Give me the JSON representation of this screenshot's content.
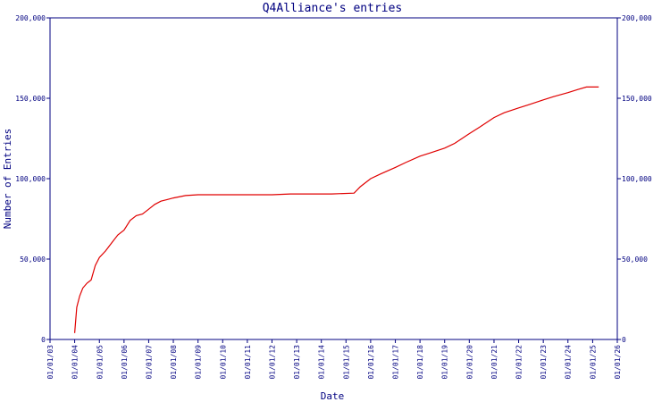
{
  "chart_data": {
    "type": "line",
    "title": "Q4Alliance's entries",
    "xlabel": "Date",
    "ylabel": "Number of Entries",
    "x_tick_labels": [
      "01/01/03",
      "01/01/04",
      "01/01/05",
      "01/01/06",
      "01/01/07",
      "01/01/08",
      "01/01/09",
      "01/01/10",
      "01/01/11",
      "01/01/12",
      "01/01/13",
      "01/01/14",
      "01/01/15",
      "01/01/16",
      "01/01/17",
      "01/01/18",
      "01/01/19",
      "01/01/20",
      "01/01/21",
      "01/01/22",
      "01/01/23",
      "01/01/24",
      "01/01/25",
      "01/01/26"
    ],
    "y_ticks": [
      0,
      50000,
      100000,
      150000,
      200000
    ],
    "y_tick_labels": [
      "0",
      "50,000",
      "100,000",
      "150,000",
      "200,000"
    ],
    "xlim": [
      "2003-01-01",
      "2026-01-01"
    ],
    "ylim": [
      0,
      200000
    ],
    "grid": false,
    "legend": "none",
    "dual_y_axis": true,
    "series": [
      {
        "color": "#e00000",
        "points": [
          {
            "x": "2004-01-01",
            "y": 4000
          },
          {
            "x": "2004-02-01",
            "y": 20000
          },
          {
            "x": "2004-03-15",
            "y": 27000
          },
          {
            "x": "2004-05-01",
            "y": 32000
          },
          {
            "x": "2004-07-01",
            "y": 35000
          },
          {
            "x": "2004-09-01",
            "y": 37000
          },
          {
            "x": "2004-11-01",
            "y": 46000
          },
          {
            "x": "2005-01-01",
            "y": 51000
          },
          {
            "x": "2005-04-01",
            "y": 55000
          },
          {
            "x": "2005-07-01",
            "y": 60000
          },
          {
            "x": "2005-10-01",
            "y": 65000
          },
          {
            "x": "2006-01-01",
            "y": 68000
          },
          {
            "x": "2006-04-01",
            "y": 74000
          },
          {
            "x": "2006-07-01",
            "y": 77000
          },
          {
            "x": "2006-10-01",
            "y": 78000
          },
          {
            "x": "2007-01-01",
            "y": 81000
          },
          {
            "x": "2007-04-01",
            "y": 84000
          },
          {
            "x": "2007-07-01",
            "y": 86000
          },
          {
            "x": "2007-10-01",
            "y": 87000
          },
          {
            "x": "2008-01-01",
            "y": 88000
          },
          {
            "x": "2008-07-01",
            "y": 89500
          },
          {
            "x": "2009-01-01",
            "y": 90000
          },
          {
            "x": "2010-01-01",
            "y": 90000
          },
          {
            "x": "2011-01-01",
            "y": 90000
          },
          {
            "x": "2012-01-01",
            "y": 90000
          },
          {
            "x": "2012-10-01",
            "y": 90500
          },
          {
            "x": "2013-06-01",
            "y": 90500
          },
          {
            "x": "2014-06-01",
            "y": 90500
          },
          {
            "x": "2015-05-01",
            "y": 91000
          },
          {
            "x": "2015-08-01",
            "y": 95000
          },
          {
            "x": "2016-01-01",
            "y": 100000
          },
          {
            "x": "2016-06-01",
            "y": 103000
          },
          {
            "x": "2017-01-01",
            "y": 107000
          },
          {
            "x": "2017-06-01",
            "y": 110000
          },
          {
            "x": "2018-01-01",
            "y": 114000
          },
          {
            "x": "2018-06-01",
            "y": 116000
          },
          {
            "x": "2019-01-01",
            "y": 119000
          },
          {
            "x": "2019-06-01",
            "y": 122000
          },
          {
            "x": "2020-01-01",
            "y": 128000
          },
          {
            "x": "2020-06-01",
            "y": 132000
          },
          {
            "x": "2021-01-01",
            "y": 138000
          },
          {
            "x": "2021-06-01",
            "y": 141000
          },
          {
            "x": "2022-01-01",
            "y": 144000
          },
          {
            "x": "2022-06-01",
            "y": 146000
          },
          {
            "x": "2023-01-01",
            "y": 149000
          },
          {
            "x": "2023-06-01",
            "y": 151000
          },
          {
            "x": "2024-01-01",
            "y": 153500
          },
          {
            "x": "2024-06-01",
            "y": 155500
          },
          {
            "x": "2024-10-01",
            "y": 157000
          },
          {
            "x": "2025-04-01",
            "y": 157000
          }
        ]
      }
    ]
  }
}
